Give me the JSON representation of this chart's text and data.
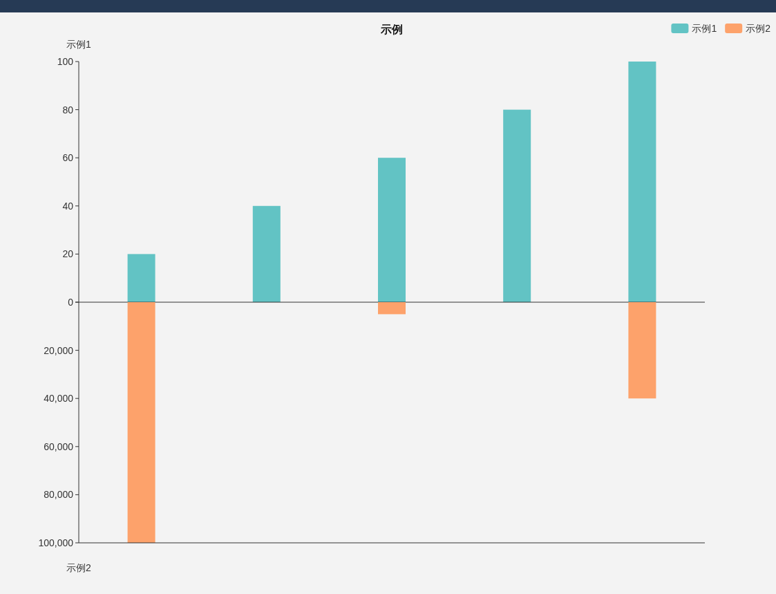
{
  "chart_data": [
    {
      "type": "bar",
      "title": "示例",
      "ylabel": "示例1",
      "categories": [
        null,
        null,
        null,
        null,
        null
      ],
      "series": [
        {
          "name": "示例1",
          "color": "#62c3c4",
          "values": [
            20,
            40,
            60,
            80,
            100
          ]
        }
      ],
      "ylim": [
        0,
        100
      ],
      "yticks": [
        0,
        20,
        40,
        60,
        80,
        100
      ],
      "legend": "top right"
    },
    {
      "type": "bar",
      "ylabel": "示例2",
      "categories": [
        null,
        null,
        null,
        null,
        null
      ],
      "series": [
        {
          "name": "示例2",
          "color": "#fda26b",
          "values": [
            100000,
            null,
            5000,
            null,
            40000
          ]
        }
      ],
      "ylim": [
        100000,
        0
      ],
      "yticks": [
        {
          "value": 0,
          "label": null
        },
        {
          "value": 20000,
          "label": "20,000"
        },
        {
          "value": 40000,
          "label": "40,000"
        },
        {
          "value": 60000,
          "label": "60,000"
        },
        {
          "value": 80000,
          "label": "80,000"
        },
        {
          "value": 100000,
          "label": "100,000"
        }
      ],
      "legend": "top right"
    }
  ]
}
